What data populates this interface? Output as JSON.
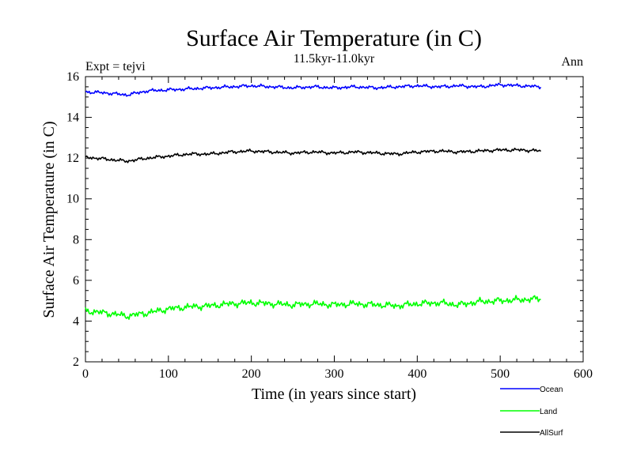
{
  "chart_data": {
    "type": "line",
    "title": "Surface Air Temperature (in C)",
    "subtitle": "11.5kyr-11.0kyr",
    "left_label": "Expt = tejvi",
    "right_label": "Ann",
    "xlabel": "Time (in years since start)",
    "ylabel": "Surface Air Temperature (in C)",
    "xlim": [
      0,
      600
    ],
    "ylim": [
      2,
      16
    ],
    "xticks": [
      "0",
      "100",
      "200",
      "300",
      "400",
      "500",
      "600"
    ],
    "yticks": [
      "2",
      "4",
      "6",
      "8",
      "10",
      "12",
      "14",
      "16"
    ],
    "grid": false,
    "legend_position": "bottom-right",
    "series": [
      {
        "name": "Ocean",
        "color": "#0000ff",
        "x": [
          0,
          25,
          50,
          75,
          100,
          125,
          150,
          175,
          200,
          225,
          250,
          275,
          300,
          325,
          350,
          375,
          400,
          425,
          450,
          475,
          500,
          525,
          550
        ],
        "values": [
          15.25,
          15.2,
          15.1,
          15.3,
          15.35,
          15.4,
          15.45,
          15.5,
          15.55,
          15.5,
          15.45,
          15.5,
          15.45,
          15.5,
          15.45,
          15.5,
          15.55,
          15.5,
          15.55,
          15.5,
          15.6,
          15.55,
          15.5
        ]
      },
      {
        "name": "Land",
        "color": "#00ff00",
        "x": [
          0,
          25,
          50,
          75,
          100,
          125,
          150,
          175,
          200,
          225,
          250,
          275,
          300,
          325,
          350,
          375,
          400,
          425,
          450,
          475,
          500,
          525,
          550
        ],
        "values": [
          4.5,
          4.4,
          4.25,
          4.4,
          4.6,
          4.7,
          4.75,
          4.85,
          4.9,
          4.85,
          4.8,
          4.85,
          4.8,
          4.85,
          4.8,
          4.75,
          4.85,
          4.9,
          4.8,
          4.95,
          5.0,
          5.05,
          5.1
        ]
      },
      {
        "name": "AllSurf",
        "color": "#000000",
        "x": [
          0,
          25,
          50,
          75,
          100,
          125,
          150,
          175,
          200,
          225,
          250,
          275,
          300,
          325,
          350,
          375,
          400,
          425,
          450,
          475,
          500,
          525,
          550
        ],
        "values": [
          12.05,
          11.95,
          11.85,
          12.0,
          12.1,
          12.2,
          12.2,
          12.3,
          12.35,
          12.3,
          12.25,
          12.3,
          12.25,
          12.3,
          12.25,
          12.2,
          12.3,
          12.35,
          12.3,
          12.35,
          12.4,
          12.4,
          12.35
        ]
      }
    ]
  }
}
